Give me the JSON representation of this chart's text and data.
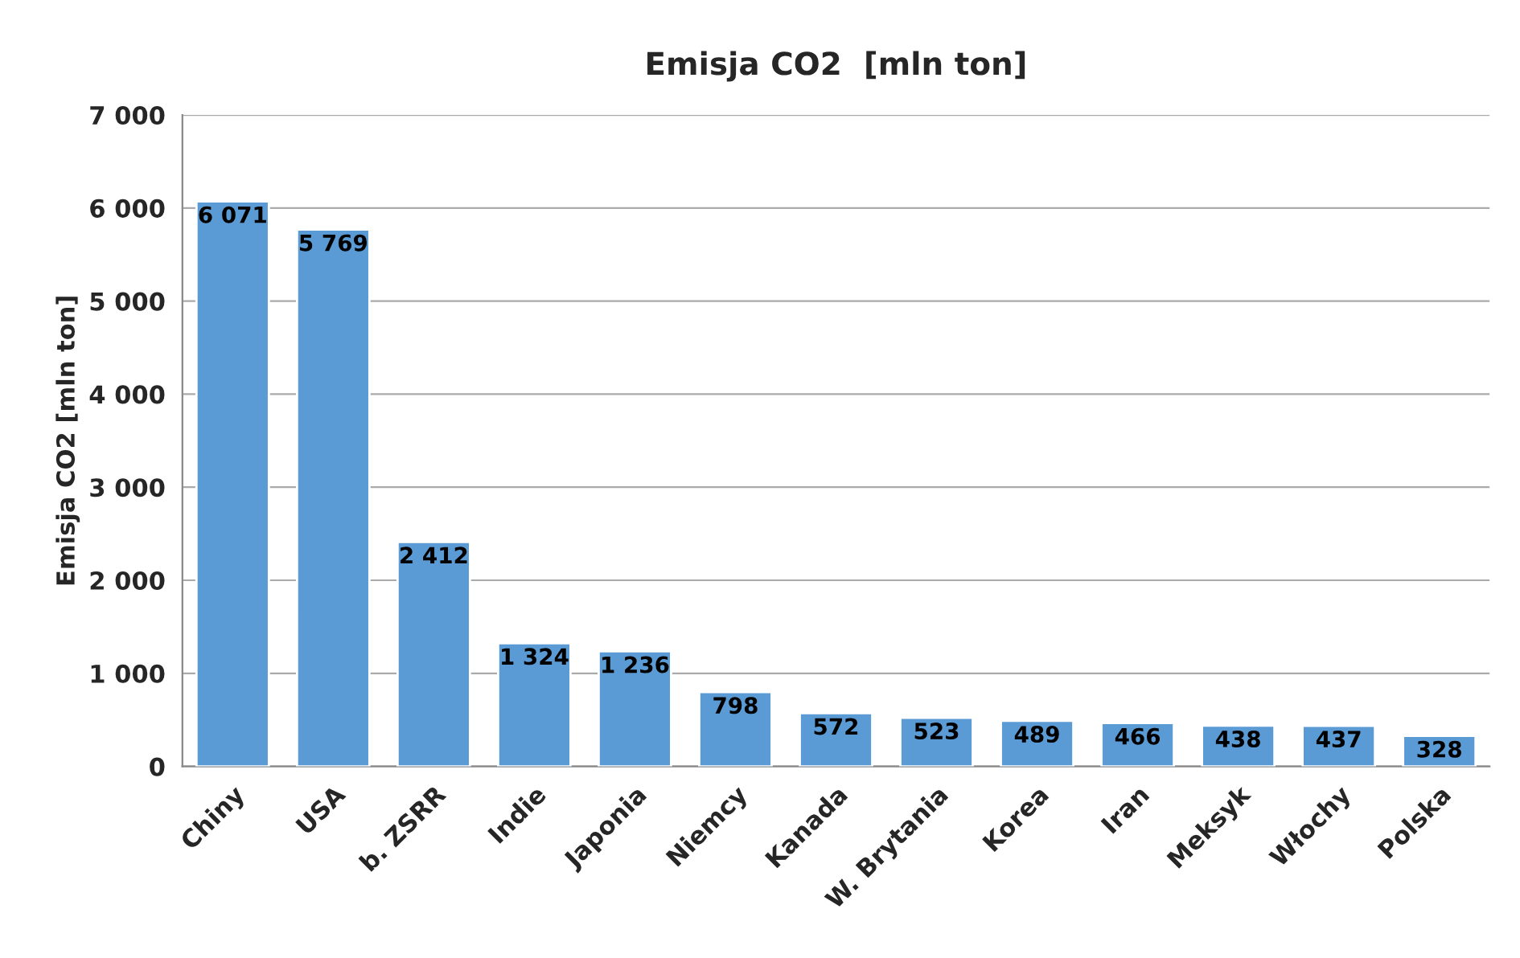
{
  "chart_data": {
    "type": "bar",
    "title": "Emisja CO2  [mln ton]",
    "ylabel": "Emisja CO2 [mln ton]",
    "categories": [
      "Chiny",
      "USA",
      "b. ZSRR",
      "Indie",
      "Japonia",
      "Niemcy",
      "Kanada",
      "W. Brytania",
      "Korea",
      "Iran",
      "Meksyk",
      "Włochy",
      "Polska"
    ],
    "values": [
      6071,
      5769,
      2412,
      1324,
      1236,
      798,
      572,
      523,
      489,
      466,
      438,
      437,
      328
    ],
    "value_labels": [
      "6 071",
      "5 769",
      "2 412",
      "1 324",
      "1 236",
      "798",
      "572",
      "523",
      "489",
      "466",
      "438",
      "437",
      "328"
    ],
    "color": "#5b9bd5",
    "ylim": [
      0,
      7000
    ],
    "yticks": [
      {
        "value": 0,
        "label": "0"
      },
      {
        "value": 1000,
        "label": "1 000"
      },
      {
        "value": 2000,
        "label": "2 000"
      },
      {
        "value": 3000,
        "label": "3 000"
      },
      {
        "value": 4000,
        "label": "4 000"
      },
      {
        "value": 5000,
        "label": "5 000"
      },
      {
        "value": 6000,
        "label": "6 000"
      },
      {
        "value": 7000,
        "label": "7 000"
      }
    ],
    "grid": "y"
  }
}
